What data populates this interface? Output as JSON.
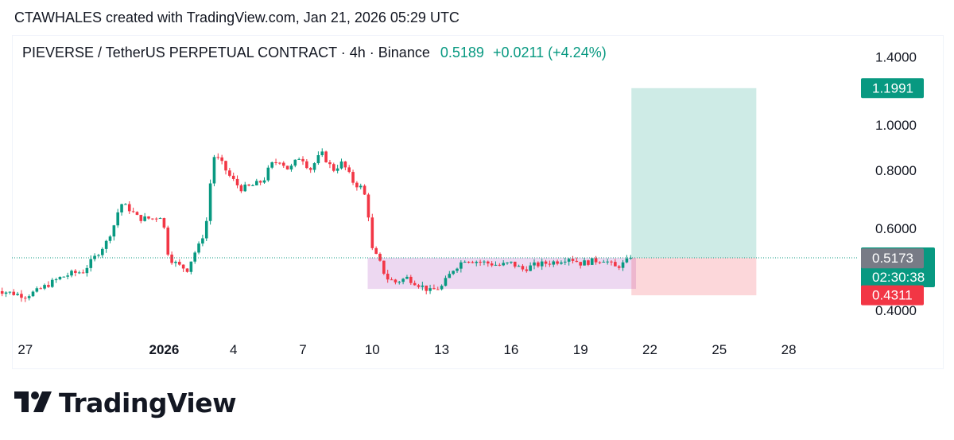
{
  "credit": "CTAWHALES created with TradingView.com, Jan 21, 2026 05:29 UTC",
  "header": {
    "symbol": "PIEVERSE / TetherUS PERPETUAL CONTRACT · 4h · Binance",
    "price": "0.5189",
    "change": "+0.0211 (+4.24%)"
  },
  "brand": {
    "name": "TradingView"
  },
  "colors": {
    "up": "#089981",
    "down": "#f23645",
    "accent_green": "#089981",
    "grey": "#787b86"
  },
  "chart_data": {
    "type": "candlestick",
    "symbol": "PIEVERSE/USDT Perp",
    "interval": "4h",
    "y_axis": {
      "scale": "log",
      "ticks": [
        0.4,
        0.6,
        0.8,
        1.0,
        1.4
      ],
      "tick_labels": [
        "0.4000",
        "0.6000",
        "0.8000",
        "1.0000",
        "1.4000"
      ]
    },
    "x_axis": {
      "ticks": [
        {
          "label": "27",
          "day": -5
        },
        {
          "label": "2026",
          "day": 1,
          "bold": true
        },
        {
          "label": "4",
          "day": 4
        },
        {
          "label": "7",
          "day": 7
        },
        {
          "label": "10",
          "day": 10
        },
        {
          "label": "13",
          "day": 13
        },
        {
          "label": "16",
          "day": 16
        },
        {
          "label": "19",
          "day": 19
        },
        {
          "label": "22",
          "day": 22
        },
        {
          "label": "25",
          "day": 25
        },
        {
          "label": "28",
          "day": 28
        }
      ]
    },
    "price_path": [
      [
        -6.5,
        0.45
      ],
      [
        -6.0,
        0.44
      ],
      [
        -5.5,
        0.435
      ],
      [
        -5.0,
        0.43
      ],
      [
        -4.5,
        0.44
      ],
      [
        -4.0,
        0.455
      ],
      [
        -3.5,
        0.47
      ],
      [
        -3.0,
        0.48
      ],
      [
        -2.5,
        0.485
      ],
      [
        -2.0,
        0.52
      ],
      [
        -1.5,
        0.56
      ],
      [
        -1.1,
        0.62
      ],
      [
        -0.9,
        0.68
      ],
      [
        -0.5,
        0.66
      ],
      [
        -0.1,
        0.63
      ],
      [
        0.5,
        0.63
      ],
      [
        0.9,
        0.64
      ],
      [
        1.2,
        0.52
      ],
      [
        1.6,
        0.5
      ],
      [
        2.0,
        0.49
      ],
      [
        2.3,
        0.53
      ],
      [
        2.6,
        0.56
      ],
      [
        2.9,
        0.64
      ],
      [
        3.1,
        0.86
      ],
      [
        3.4,
        0.84
      ],
      [
        3.8,
        0.78
      ],
      [
        4.3,
        0.73
      ],
      [
        4.8,
        0.74
      ],
      [
        5.3,
        0.76
      ],
      [
        5.6,
        0.82
      ],
      [
        6.0,
        0.84
      ],
      [
        6.4,
        0.8
      ],
      [
        6.9,
        0.86
      ],
      [
        7.3,
        0.8
      ],
      [
        7.8,
        0.87
      ],
      [
        8.3,
        0.8
      ],
      [
        8.7,
        0.83
      ],
      [
        9.2,
        0.75
      ],
      [
        9.6,
        0.73
      ],
      [
        9.8,
        0.66
      ],
      [
        10.0,
        0.54
      ],
      [
        10.3,
        0.51
      ],
      [
        10.6,
        0.47
      ],
      [
        11.0,
        0.46
      ],
      [
        11.5,
        0.47
      ],
      [
        12.0,
        0.455
      ],
      [
        12.5,
        0.44
      ],
      [
        13.0,
        0.45
      ],
      [
        13.5,
        0.49
      ],
      [
        14.0,
        0.515
      ],
      [
        14.5,
        0.51
      ],
      [
        15.0,
        0.505
      ],
      [
        15.5,
        0.5
      ],
      [
        16.0,
        0.505
      ],
      [
        16.5,
        0.49
      ],
      [
        17.0,
        0.5
      ],
      [
        17.5,
        0.505
      ],
      [
        18.0,
        0.51
      ],
      [
        18.5,
        0.52
      ],
      [
        19.0,
        0.505
      ],
      [
        19.5,
        0.51
      ],
      [
        20.0,
        0.515
      ],
      [
        20.5,
        0.495
      ],
      [
        20.9,
        0.505
      ],
      [
        21.2,
        0.5189
      ]
    ],
    "position": {
      "type": "long",
      "entry": 0.5189,
      "target": 1.1991,
      "stop": 0.4311,
      "start_day": 21.2,
      "end_day": 26.6
    },
    "range_box": {
      "from_day": 9.8,
      "to_day": 21.4,
      "top": 0.5189,
      "bottom": 0.445
    },
    "price_labels": [
      {
        "value": 1.1991,
        "text": "1.1991",
        "color": "#089981"
      },
      {
        "value": 0.5189,
        "text": "0.5189",
        "sub": "02:30:38",
        "color": "#089981"
      },
      {
        "value": 0.5173,
        "text": "0.5173",
        "color": "#787b86"
      },
      {
        "value": 0.4311,
        "text": "0.4311",
        "color": "#f23645"
      }
    ]
  }
}
